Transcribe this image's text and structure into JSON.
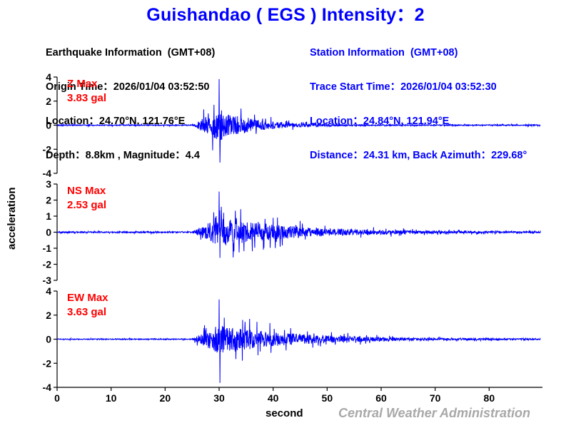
{
  "header": {
    "title": "Guishandao ( EGS ) Intensity：2"
  },
  "earthquake_info": {
    "heading": "Earthquake Information  (GMT+08)",
    "origin_time": "Origin Time：2026/01/04 03:52:50",
    "location": "Location：24.70°N, 121.76°E",
    "depth_magnitude": "Depth：8.8km , Magnitude：4.4"
  },
  "station_info": {
    "heading": "Station Information  (GMT+08)",
    "trace_start_time": "Trace Start Time：2026/01/04 03:52:30",
    "location": "Location：24.84°N, 121.94°E",
    "distance_azimuth": "Distance：24.31 km, Back Azimuth：229.68°"
  },
  "axes": {
    "ylabel": "acceleration",
    "xlabel": "second",
    "credit": "Central Weather Administration"
  },
  "colors": {
    "title": "#0000ff",
    "trace": "#0000ff",
    "max_label": "#ff0000",
    "credit": "#a8a8a8",
    "axis": "#000000"
  },
  "chart_data": {
    "type": "line",
    "title": "Guishandao ( EGS ) Intensity：2",
    "xlabel": "second",
    "ylabel": "acceleration",
    "xlim": [
      0,
      90
    ],
    "x_ticks": [
      0,
      10,
      20,
      30,
      40,
      50,
      60,
      70,
      80
    ],
    "grid": false,
    "legend": "none",
    "panels": [
      {
        "channel": "Z",
        "max_label": "Z Max",
        "max_value": "3.83 gal",
        "ylim": [
          -4,
          4
        ],
        "y_ticks": [
          4,
          2,
          0,
          -2,
          -4
        ],
        "onset_s": 25,
        "peak_s": 30,
        "peak_amplitude": 3.83,
        "min_amplitude": -3.1,
        "coda_end_s": 55,
        "seed": 11
      },
      {
        "channel": "NS",
        "max_label": "NS Max",
        "max_value": "2.53 gal",
        "ylim": [
          -3,
          3
        ],
        "y_ticks": [
          3,
          2,
          1,
          0,
          -1,
          -2,
          -3
        ],
        "onset_s": 25,
        "peak_s": 30,
        "peak_amplitude": 2.53,
        "min_amplitude": -1.6,
        "coda_end_s": 85,
        "seed": 29
      },
      {
        "channel": "EW",
        "max_label": "EW Max",
        "max_value": "3.63 gal",
        "ylim": [
          -4,
          4
        ],
        "y_ticks": [
          4,
          2,
          0,
          -2,
          -4
        ],
        "onset_s": 25,
        "peak_s": 30,
        "peak_amplitude": 3.3,
        "min_amplitude": -3.63,
        "coda_end_s": 85,
        "seed": 47
      }
    ]
  }
}
